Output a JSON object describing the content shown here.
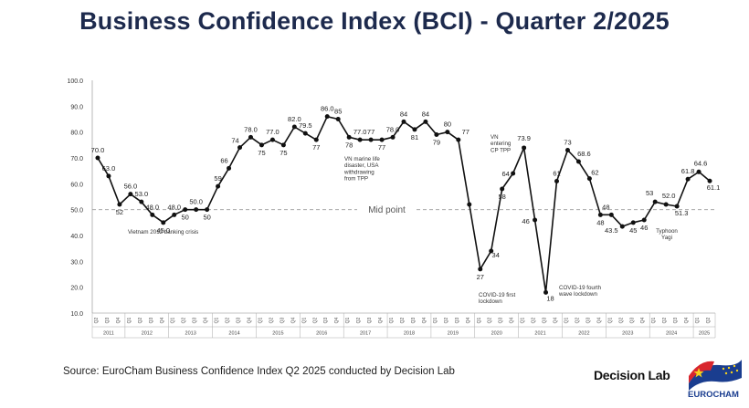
{
  "chart_data": {
    "type": "line",
    "title": "Business Confidence Index (BCI) - Quarter 2/2025",
    "ylim": [
      10,
      100
    ],
    "yticks": [
      "100.0",
      "90.0",
      "80.0",
      "70.0",
      "60.0",
      "50.0",
      "40.0",
      "30.0",
      "20.0",
      "10.0"
    ],
    "midpoint": {
      "value": 50,
      "label": "Mid point"
    },
    "quarter_labels": [
      "Q1",
      "Q2",
      "Q3",
      "Q4"
    ],
    "years": [
      "2011",
      "2012",
      "2013",
      "2014",
      "2015",
      "2016",
      "2017",
      "2018",
      "2019",
      "2020",
      "2021",
      "2022",
      "2023",
      "2024",
      "2025"
    ],
    "values": [
      70.0,
      63.0,
      52,
      56.0,
      53.0,
      48.0,
      45.0,
      48.0,
      50,
      50.0,
      50,
      59,
      66,
      74,
      78.0,
      75,
      77.0,
      75,
      82.0,
      79.5,
      77,
      86.0,
      85,
      78,
      77.0,
      77,
      77,
      78.0,
      84,
      81,
      84,
      79,
      80,
      77,
      52,
      27,
      34,
      58,
      64,
      73.9,
      46,
      18,
      61,
      73,
      68.6,
      62,
      48,
      48,
      43.5,
      45,
      46,
      53,
      52.0,
      51.3,
      61.8,
      64.6,
      61.1
    ],
    "value_labels": [
      "70.0",
      "63.0",
      "52",
      "56.0",
      "53.0",
      "48.0",
      "45.0",
      "48.0",
      "50",
      "50.0",
      "50",
      "59",
      "66",
      "74",
      "78.0",
      "75",
      "77.0",
      "75",
      "82.0",
      "79.5",
      "77",
      "86.0",
      "85",
      "78",
      "77.0",
      "77",
      "77",
      "78.0",
      "84",
      "81",
      "84",
      "79",
      "80",
      "77",
      "",
      "27",
      "34",
      "58",
      "64",
      "73.9",
      "46",
      "18",
      "61",
      "73",
      "68.6",
      "62",
      "48",
      "48",
      "43.5",
      "45",
      "46",
      "53",
      "52.0",
      "51.3",
      "61.8",
      "64.6",
      "61.1"
    ],
    "annotations": [
      {
        "lines": [
          "Vietnam 2012 banking crisis"
        ]
      },
      {
        "lines": [
          "VN marine life",
          "disaster, USA",
          "withdrawing",
          "from TPP"
        ]
      },
      {
        "lines": [
          "VN",
          "entering",
          "CP TPP"
        ]
      },
      {
        "lines": [
          "COVID-19 first",
          "lockdown"
        ]
      },
      {
        "lines": [
          "COVID-19 fourth",
          "wave lockdown"
        ]
      },
      {
        "lines": [
          "Typhoon",
          "Yagi"
        ]
      }
    ]
  },
  "footer": {
    "source": "Source: EuroCham Business Confidence Index Q2 2025 conducted by Decision Lab",
    "brand": "Decision Lab",
    "logo_text": "EUROCHAM"
  },
  "colors": {
    "title": "#1d2a4d",
    "line": "#111111",
    "grid": "#cccccc",
    "midline": "#999999"
  }
}
